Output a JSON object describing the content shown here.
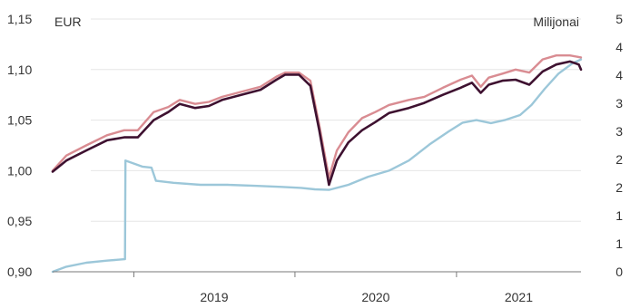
{
  "chart_data": {
    "type": "line",
    "left_unit": "EUR",
    "right_unit": "Milijonai",
    "x_ticks": [
      "2019",
      "2020",
      "2021"
    ],
    "y_left_ticks": [
      "0,90",
      "0,95",
      "1,00",
      "1,05",
      "1,10",
      "1,15"
    ],
    "y_right_ticks": [
      "0",
      "1",
      "1",
      "2",
      "2",
      "3",
      "3",
      "4",
      "4",
      "5"
    ],
    "ylim_left": [
      0.9,
      1.15
    ],
    "ylim_right": [
      0,
      5
    ],
    "grid": true,
    "series": [
      {
        "axis": "left",
        "color": "#d98c92",
        "points": [
          [
            "2018-07-01",
            1.0
          ],
          [
            "2018-08-01",
            1.015
          ],
          [
            "2018-09-15",
            1.025
          ],
          [
            "2018-11-01",
            1.035
          ],
          [
            "2018-12-10",
            1.04
          ],
          [
            "2019-01-10",
            1.04
          ],
          [
            "2019-02-15",
            1.058
          ],
          [
            "2019-03-20",
            1.063
          ],
          [
            "2019-04-15",
            1.07
          ],
          [
            "2019-05-20",
            1.066
          ],
          [
            "2019-06-20",
            1.068
          ],
          [
            "2019-07-20",
            1.073
          ],
          [
            "2019-09-01",
            1.078
          ],
          [
            "2019-10-15",
            1.083
          ],
          [
            "2019-11-20",
            1.093
          ],
          [
            "2019-12-10",
            1.097
          ],
          [
            "2020-01-10",
            1.097
          ],
          [
            "2020-02-05",
            1.089
          ],
          [
            "2020-02-25",
            1.045
          ],
          [
            "2020-03-18",
            0.993
          ],
          [
            "2020-04-05",
            1.02
          ],
          [
            "2020-05-01",
            1.038
          ],
          [
            "2020-06-01",
            1.052
          ],
          [
            "2020-07-01",
            1.058
          ],
          [
            "2020-08-01",
            1.065
          ],
          [
            "2020-09-15",
            1.07
          ],
          [
            "2020-10-20",
            1.073
          ],
          [
            "2020-12-01",
            1.082
          ],
          [
            "2021-01-10",
            1.09
          ],
          [
            "2021-02-05",
            1.094
          ],
          [
            "2021-02-25",
            1.083
          ],
          [
            "2021-03-15",
            1.092
          ],
          [
            "2021-04-15",
            1.096
          ],
          [
            "2021-05-15",
            1.1
          ],
          [
            "2021-06-15",
            1.097
          ],
          [
            "2021-07-15",
            1.11
          ],
          [
            "2021-08-15",
            1.114
          ],
          [
            "2021-09-15",
            1.114
          ],
          [
            "2021-10-10",
            1.112
          ]
        ]
      },
      {
        "axis": "left",
        "color": "#3e1130",
        "points": [
          [
            "2018-07-01",
            0.999
          ],
          [
            "2018-08-01",
            1.01
          ],
          [
            "2018-09-15",
            1.02
          ],
          [
            "2018-11-01",
            1.03
          ],
          [
            "2018-12-10",
            1.033
          ],
          [
            "2019-01-10",
            1.033
          ],
          [
            "2019-02-15",
            1.05
          ],
          [
            "2019-03-20",
            1.058
          ],
          [
            "2019-04-15",
            1.066
          ],
          [
            "2019-05-20",
            1.062
          ],
          [
            "2019-06-20",
            1.064
          ],
          [
            "2019-07-20",
            1.07
          ],
          [
            "2019-09-01",
            1.075
          ],
          [
            "2019-10-15",
            1.08
          ],
          [
            "2019-11-20",
            1.09
          ],
          [
            "2019-12-10",
            1.095
          ],
          [
            "2020-01-10",
            1.095
          ],
          [
            "2020-02-05",
            1.084
          ],
          [
            "2020-02-25",
            1.04
          ],
          [
            "2020-03-18",
            0.986
          ],
          [
            "2020-04-05",
            1.01
          ],
          [
            "2020-05-01",
            1.028
          ],
          [
            "2020-06-01",
            1.04
          ],
          [
            "2020-07-01",
            1.048
          ],
          [
            "2020-08-01",
            1.057
          ],
          [
            "2020-09-15",
            1.062
          ],
          [
            "2020-10-20",
            1.067
          ],
          [
            "2020-12-01",
            1.075
          ],
          [
            "2021-01-10",
            1.082
          ],
          [
            "2021-02-05",
            1.087
          ],
          [
            "2021-02-25",
            1.077
          ],
          [
            "2021-03-15",
            1.085
          ],
          [
            "2021-04-15",
            1.089
          ],
          [
            "2021-05-15",
            1.09
          ],
          [
            "2021-06-15",
            1.085
          ],
          [
            "2021-07-15",
            1.098
          ],
          [
            "2021-08-15",
            1.105
          ],
          [
            "2021-09-15",
            1.108
          ],
          [
            "2021-10-05",
            1.105
          ],
          [
            "2021-10-10",
            1.1
          ]
        ]
      },
      {
        "axis": "right",
        "color": "#9cc7d9",
        "points": [
          [
            "2018-07-01",
            0.0
          ],
          [
            "2018-08-01",
            0.1
          ],
          [
            "2018-09-15",
            0.18
          ],
          [
            "2018-11-01",
            0.22
          ],
          [
            "2018-12-12",
            0.25
          ],
          [
            "2018-12-13",
            2.2
          ],
          [
            "2019-01-20",
            2.08
          ],
          [
            "2019-02-10",
            2.06
          ],
          [
            "2019-02-20",
            1.8
          ],
          [
            "2019-04-01",
            1.76
          ],
          [
            "2019-06-01",
            1.72
          ],
          [
            "2019-08-01",
            1.72
          ],
          [
            "2019-10-01",
            1.7
          ],
          [
            "2019-12-01",
            1.68
          ],
          [
            "2020-01-15",
            1.66
          ],
          [
            "2020-02-15",
            1.63
          ],
          [
            "2020-03-18",
            1.62
          ],
          [
            "2020-05-01",
            1.72
          ],
          [
            "2020-06-15",
            1.88
          ],
          [
            "2020-08-01",
            2.0
          ],
          [
            "2020-09-15",
            2.2
          ],
          [
            "2020-11-01",
            2.52
          ],
          [
            "2020-12-15",
            2.78
          ],
          [
            "2021-01-15",
            2.95
          ],
          [
            "2021-02-15",
            3.0
          ],
          [
            "2021-03-20",
            2.94
          ],
          [
            "2021-04-20",
            3.0
          ],
          [
            "2021-05-25",
            3.1
          ],
          [
            "2021-06-20",
            3.3
          ],
          [
            "2021-07-20",
            3.62
          ],
          [
            "2021-08-20",
            3.92
          ],
          [
            "2021-09-20",
            4.12
          ],
          [
            "2021-10-10",
            4.2
          ]
        ]
      }
    ]
  }
}
